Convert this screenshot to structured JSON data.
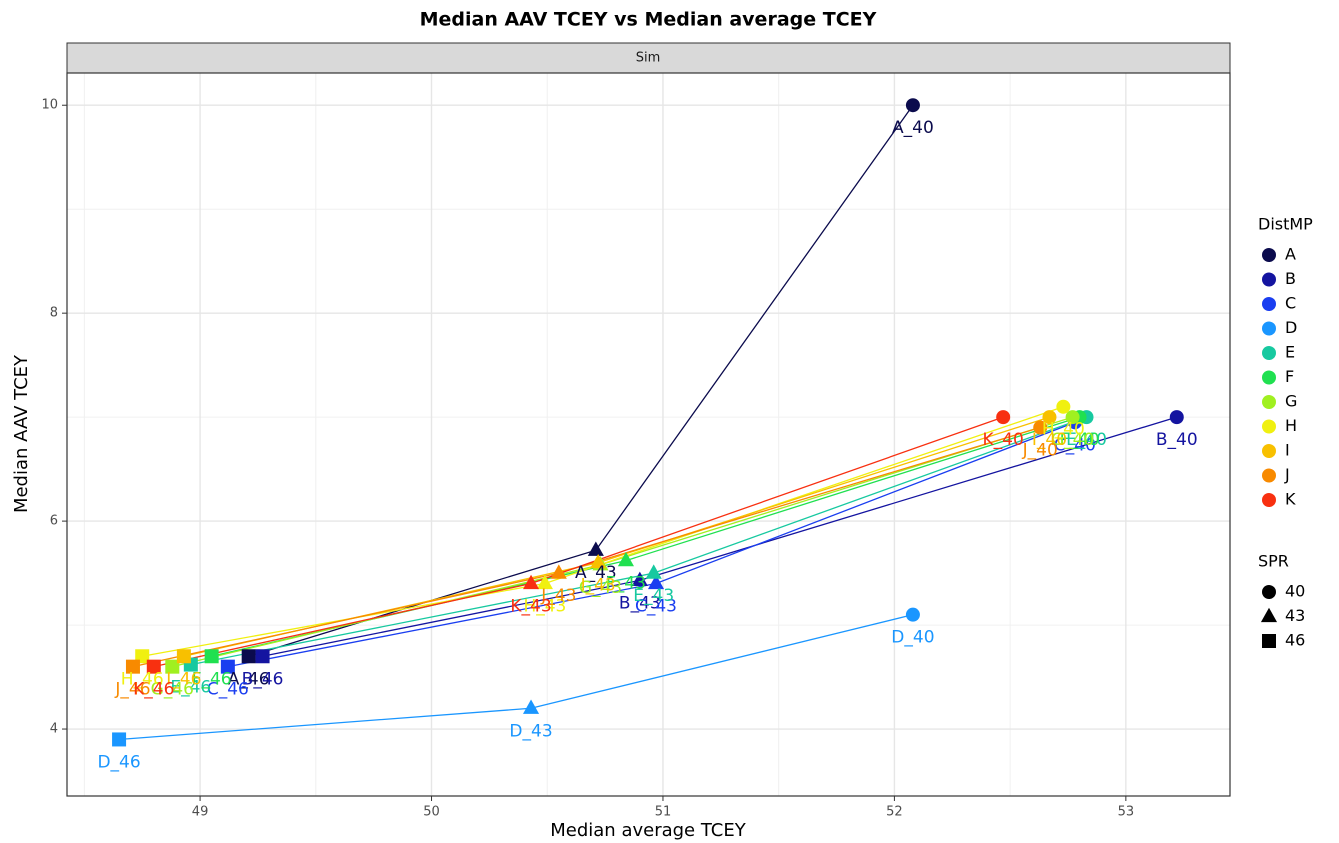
{
  "chart_data": {
    "type": "scatter",
    "title": "Median AAV TCEY vs Median average TCEY",
    "facet": "Sim",
    "xlabel": "Median average TCEY",
    "ylabel": "Median AAV TCEY",
    "xlim": [
      48.425,
      53.45
    ],
    "ylim": [
      3.356,
      10.31
    ],
    "xticks": [
      49,
      50,
      51,
      52,
      53
    ],
    "yticks": [
      4,
      6,
      8,
      10
    ],
    "grid": true,
    "legend_title": "DistMP",
    "shape_legend": {
      "title": "SPR",
      "values": [
        40,
        43,
        46
      ],
      "shapes": [
        "circle",
        "triangle",
        "square"
      ]
    },
    "series": [
      {
        "name": "A",
        "color": "#0b0b4d",
        "x": [
          52.08,
          50.71,
          49.21
        ],
        "values": [
          10.0,
          5.72,
          4.7
        ],
        "labels": [
          "A_40",
          "A_43",
          "A_46"
        ]
      },
      {
        "name": "B",
        "color": "#1414a0",
        "x": [
          53.22,
          50.9,
          49.27
        ],
        "values": [
          7.0,
          5.43,
          4.7
        ],
        "labels": [
          "B_40",
          "B_43",
          "B_46"
        ]
      },
      {
        "name": "C",
        "color": "#1a3ef0",
        "x": [
          52.78,
          50.97,
          49.12
        ],
        "values": [
          6.95,
          5.4,
          4.6
        ],
        "labels": [
          "C_40",
          "C_43",
          "C_46"
        ]
      },
      {
        "name": "D",
        "color": "#1a96ff",
        "x": [
          52.08,
          50.43,
          48.65
        ],
        "values": [
          5.1,
          4.2,
          3.9
        ],
        "labels": [
          "D_40",
          "D_43",
          "D_46"
        ]
      },
      {
        "name": "E",
        "color": "#17c9a0",
        "x": [
          52.83,
          50.96,
          48.96
        ],
        "values": [
          7.0,
          5.5,
          4.62
        ],
        "labels": [
          "E_40",
          "E_43",
          "E_46"
        ]
      },
      {
        "name": "F",
        "color": "#20e050",
        "x": [
          52.8,
          50.84,
          49.05
        ],
        "values": [
          7.0,
          5.62,
          4.7
        ],
        "labels": [
          "F_40",
          "F_43",
          "F_46"
        ]
      },
      {
        "name": "G",
        "color": "#a0f020",
        "x": [
          52.77,
          50.73,
          48.88
        ],
        "values": [
          7.0,
          5.58,
          4.6
        ],
        "labels": [
          "G_40",
          "G_43",
          "G_46"
        ]
      },
      {
        "name": "H",
        "color": "#f0f010",
        "x": [
          52.73,
          50.49,
          48.75
        ],
        "values": [
          7.1,
          5.4,
          4.7
        ],
        "labels": [
          "H_40",
          "H_43",
          "H_46"
        ]
      },
      {
        "name": "I",
        "color": "#f8c000",
        "x": [
          52.67,
          50.72,
          48.93
        ],
        "values": [
          7.0,
          5.6,
          4.7
        ],
        "labels": [
          "I_40",
          "I_43",
          "I_46"
        ]
      },
      {
        "name": "J",
        "color": "#f88a00",
        "x": [
          52.63,
          50.55,
          48.71
        ],
        "values": [
          6.9,
          5.5,
          4.6
        ],
        "labels": [
          "J_40",
          "J_43",
          "J_46"
        ]
      },
      {
        "name": "K",
        "color": "#f83010",
        "x": [
          52.47,
          50.43,
          48.8
        ],
        "values": [
          7.0,
          5.4,
          4.6
        ],
        "labels": [
          "K_40",
          "K_43",
          "K_46"
        ]
      }
    ]
  }
}
